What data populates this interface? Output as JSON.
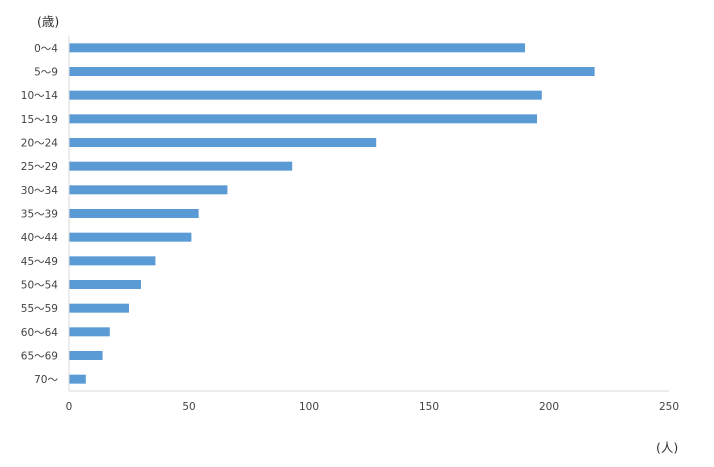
{
  "chart_data": {
    "type": "bar",
    "orientation": "horizontal",
    "title": "",
    "xlabel": "",
    "ylabel": "",
    "x_unit_label": "(人)",
    "y_unit_label": "(歳)",
    "categories": [
      "0～4",
      "5～9",
      "10～14",
      "15～19",
      "20～24",
      "25～29",
      "30～34",
      "35～39",
      "40～44",
      "45～49",
      "50～54",
      "55～59",
      "60～64",
      "65～69",
      "70～"
    ],
    "values": [
      190,
      219,
      197,
      195,
      128,
      93,
      66,
      54,
      51,
      36,
      30,
      25,
      17,
      14,
      7
    ],
    "xlim": [
      0,
      250
    ],
    "xticks": [
      0,
      50,
      100,
      150,
      200,
      250
    ],
    "grid": false,
    "legend": "none",
    "bar_color": "#5b9bd5",
    "axis_color": "#d9d9d9"
  }
}
